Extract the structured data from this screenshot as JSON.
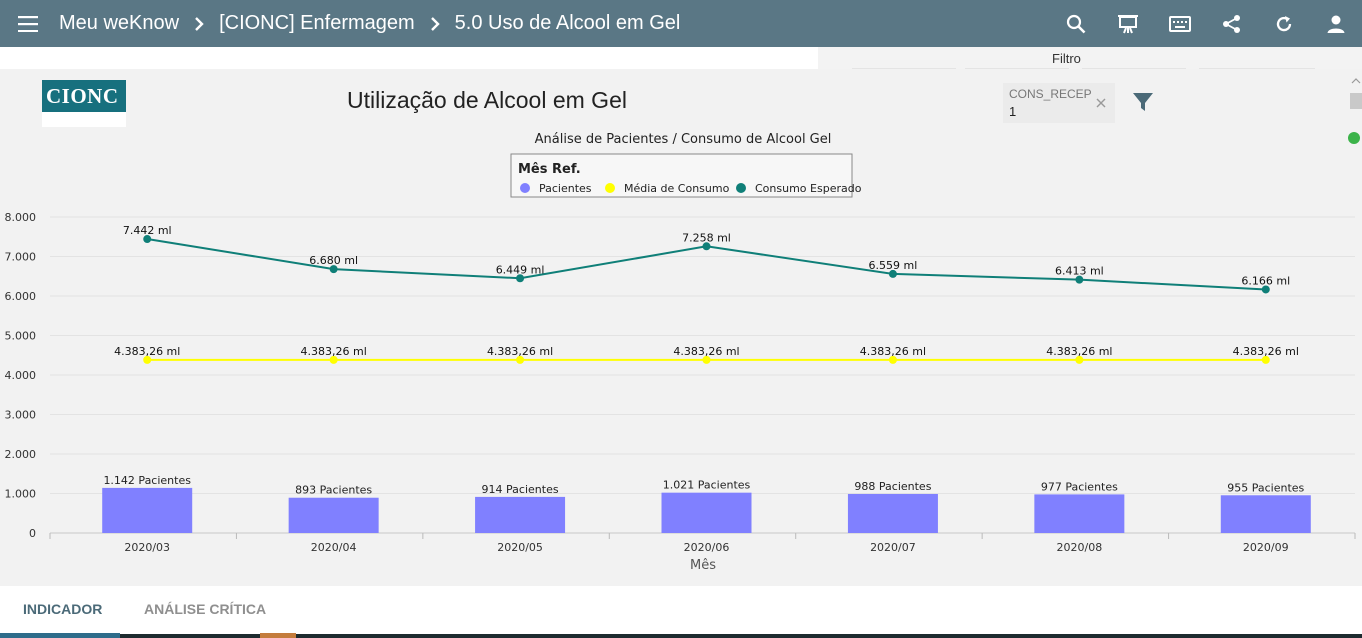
{
  "header": {
    "breadcrumbs": [
      "Meu weKnow",
      "[CIONC] Enfermagem",
      "5.0 Uso de Alcool em Gel"
    ],
    "bg_color": "#5a7785",
    "icons": [
      "menu-icon",
      "chevron-right-icon",
      "search-icon",
      "presentation-icon",
      "keyboard-icon",
      "share-icon",
      "refresh-icon",
      "account-icon"
    ]
  },
  "filter_bar": {
    "label": "Filtro"
  },
  "dashboard": {
    "logo_text": "CIONC",
    "title": "Utilização de Alcool em Gel",
    "filter_chip": {
      "name": "CONS_RECEP",
      "value": "1"
    }
  },
  "chart_data": {
    "type": "bar+line",
    "title": "Análise de Pacientes / Consumo de Alcool Gel",
    "legend_title": "Mês Ref.",
    "legend_position": "top-center",
    "xlabel": "Mês",
    "categories": [
      "2020/03",
      "2020/04",
      "2020/05",
      "2020/06",
      "2020/07",
      "2020/08",
      "2020/09"
    ],
    "y_ticks": [
      "0",
      "1.000",
      "2.000",
      "3.000",
      "4.000",
      "5.000",
      "6.000",
      "7.000",
      "8.000"
    ],
    "ylim": [
      0,
      8000
    ],
    "grid": true,
    "series": [
      {
        "name": "Pacientes",
        "kind": "bar",
        "color": "#8080ff",
        "values": [
          1142,
          893,
          914,
          1021,
          988,
          977,
          955
        ],
        "labels": [
          "1.142 Pacientes",
          "893 Pacientes",
          "914 Pacientes",
          "1.021 Pacientes",
          "988 Pacientes",
          "977 Pacientes",
          "955 Pacientes"
        ]
      },
      {
        "name": "Média de Consumo",
        "kind": "line",
        "color": "#ffff00",
        "values": [
          4383.26,
          4383.26,
          4383.26,
          4383.26,
          4383.26,
          4383.26,
          4383.26
        ],
        "labels": [
          "4.383,26 ml",
          "4.383,26 ml",
          "4.383,26 ml",
          "4.383,26 ml",
          "4.383,26 ml",
          "4.383,26 ml",
          "4.383,26 ml"
        ]
      },
      {
        "name": "Consumo Esperado",
        "kind": "line",
        "color": "#0f7f78",
        "values": [
          7442,
          6680,
          6449,
          7258,
          6559,
          6413,
          6166
        ],
        "labels": [
          "7.442 ml",
          "6.680 ml",
          "6.449 ml",
          "7.258 ml",
          "6.559 ml",
          "6.413 ml",
          "6.166 ml"
        ]
      }
    ]
  },
  "tabs": [
    {
      "label": "INDICADOR",
      "active": true
    },
    {
      "label": "ANÁLISE CRÍTICA",
      "active": false
    }
  ]
}
